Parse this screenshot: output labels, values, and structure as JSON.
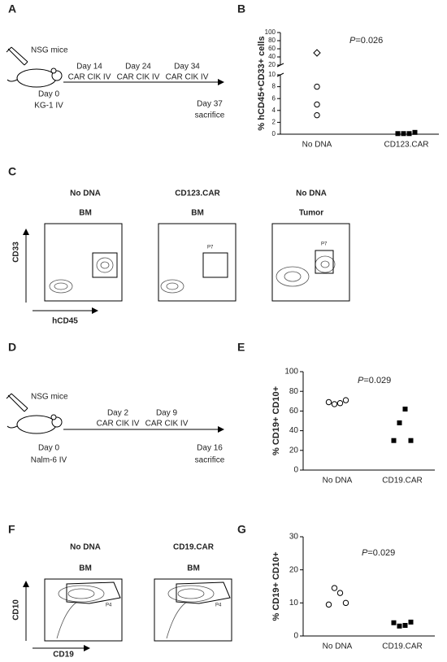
{
  "panel_labels": [
    "A",
    "B",
    "C",
    "D",
    "E",
    "F",
    "G"
  ],
  "timeline_a": {
    "host": "NSG mice",
    "events": [
      {
        "day": "Day 14",
        "treatment": "CAR CIK IV"
      },
      {
        "day": "Day 24",
        "treatment": "CAR CIK IV"
      },
      {
        "day": "Day 34",
        "treatment": "CAR CIK IV"
      }
    ],
    "start": {
      "day": "Day 0",
      "treatment": "KG-1 IV"
    },
    "end": {
      "day": "Day 37",
      "treatment": "sacrifice"
    }
  },
  "flow_c": {
    "y_label": "CD33",
    "x_label": "hCD45",
    "plots": [
      {
        "group": "No DNA",
        "tissue": "BM"
      },
      {
        "group": "CD123.CAR",
        "tissue": "BM",
        "gate": "P7"
      },
      {
        "group": "No DNA",
        "tissue": "Tumor",
        "gate": "P7"
      }
    ]
  },
  "timeline_d": {
    "host": "NSG mice",
    "events": [
      {
        "day": "Day 2",
        "treatment": "CAR CIK IV"
      },
      {
        "day": "Day 9",
        "treatment": "CAR CIK IV"
      }
    ],
    "start": {
      "day": "Day 0",
      "treatment": "Nalm-6 IV"
    },
    "end": {
      "day": "Day 16",
      "treatment": "sacrifice"
    }
  },
  "flow_f": {
    "y_label": "CD10",
    "x_label": "CD19",
    "plots": [
      {
        "group": "No DNA",
        "tissue": "BM",
        "gate": "P4"
      },
      {
        "group": "CD19.CAR",
        "tissue": "BM",
        "gate": "P4"
      }
    ]
  },
  "chart_data": [
    {
      "type": "dot",
      "y_label": "% hCD45+CD33+ cells",
      "annotation": {
        "italic": "P",
        "text": "=0.026"
      },
      "categories": [
        "No DNA",
        "CD123.CAR"
      ],
      "values": [
        [
          50,
          8,
          5,
          3.2
        ],
        [
          0.1,
          0.1,
          0.1,
          0.3
        ]
      ],
      "markers": [
        [
          "diamond",
          "circle",
          "circle",
          "circle"
        ],
        [
          "square",
          "square",
          "square",
          "square"
        ]
      ],
      "ylim": [
        0,
        100
      ],
      "ybreak": [
        10,
        20
      ],
      "yticks": [
        0,
        2,
        4,
        6,
        8,
        10,
        20,
        40,
        60,
        80,
        100
      ]
    },
    {
      "type": "dot",
      "y_label": "% CD19+ CD10+",
      "annotation": {
        "italic": "P",
        "text": "=0.029"
      },
      "categories": [
        "No DNA",
        "CD19.CAR"
      ],
      "values": [
        [
          69,
          67,
          68,
          71
        ],
        [
          30,
          48,
          62,
          30
        ]
      ],
      "markers": [
        [
          "circle",
          "circle",
          "circle",
          "circle"
        ],
        [
          "square",
          "square",
          "square",
          "square"
        ]
      ],
      "ylim": [
        0,
        100
      ],
      "yticks": [
        0,
        20,
        40,
        60,
        80,
        100
      ]
    },
    {
      "type": "dot",
      "y_label": "% CD19+ CD10+",
      "annotation": {
        "italic": "P",
        "text": "=0.029"
      },
      "categories": [
        "No DNA",
        "CD19.CAR"
      ],
      "values": [
        [
          9.5,
          14.5,
          13,
          10
        ],
        [
          4,
          3,
          3.2,
          4.2
        ]
      ],
      "markers": [
        [
          "circle",
          "circle",
          "circle",
          "circle"
        ],
        [
          "square",
          "square",
          "square",
          "square"
        ]
      ],
      "ylim": [
        0,
        30
      ],
      "yticks": [
        0,
        10,
        20,
        30
      ]
    }
  ]
}
